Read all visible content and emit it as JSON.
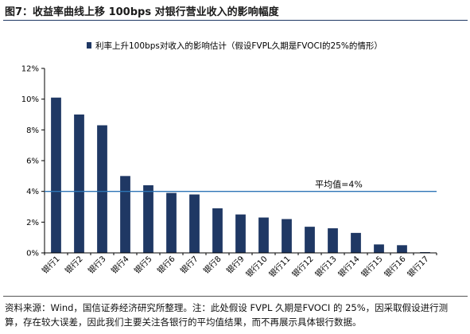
{
  "figure": {
    "title": "图7：收益率曲线上移 100bps 对银行营业收入的影响幅度",
    "note": "资料来源：Wind，国信证券经济研究所整理。注：此处假设 FVPL 久期是FVOCI 的 25%，因采取假设进行测算，存在较大误差，因此我们主要关注各银行的平均值结果，而不再展示具体银行数据。"
  },
  "chart_data": {
    "type": "bar",
    "legend_position": "top",
    "grid": false,
    "series": [
      {
        "name": "利率上升100bps对收入的影响估计（假设FVPL久期是FVOCI的25%的情形）",
        "color": "#1f3864",
        "values": [
          10.1,
          9.0,
          8.3,
          5.0,
          4.4,
          3.9,
          3.8,
          2.9,
          2.5,
          2.3,
          2.2,
          1.7,
          1.6,
          1.3,
          0.55,
          0.5,
          0.05
        ]
      }
    ],
    "categories": [
      "银行1",
      "银行2",
      "银行3",
      "银行4",
      "银行5",
      "银行6",
      "银行7",
      "银行8",
      "银行9",
      "银行10",
      "银行11",
      "银行12",
      "银行13",
      "银行14",
      "银行15",
      "银行16",
      "银行17"
    ],
    "y_ticks": [
      "0%",
      "2%",
      "4%",
      "6%",
      "8%",
      "10%",
      "12%"
    ],
    "ylim": [
      0,
      12
    ],
    "average": {
      "value": 4.0,
      "label": "平均值=4%",
      "color": "#2e75b6"
    }
  }
}
